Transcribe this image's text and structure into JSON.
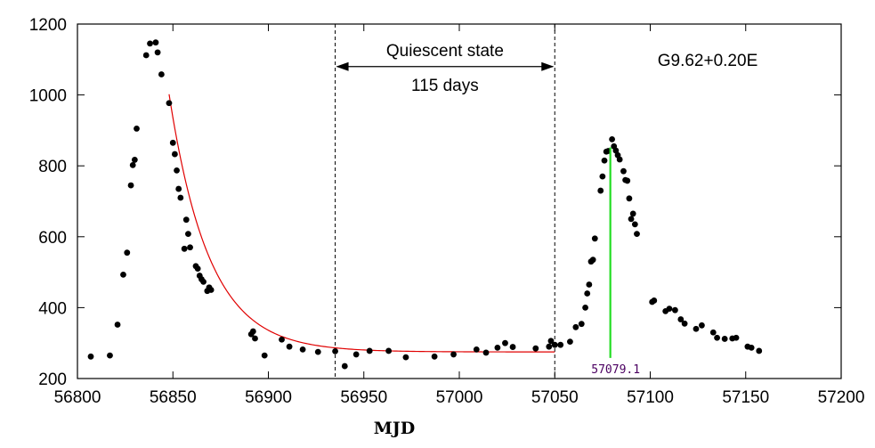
{
  "chart_data": {
    "type": "scatter",
    "title": "",
    "xlabel": "MJD",
    "ylabel": "",
    "xlim": [
      56800,
      57200
    ],
    "ylim": [
      200,
      1200
    ],
    "x_ticks": [
      56800,
      56850,
      56900,
      56950,
      57000,
      57050,
      57100,
      57150,
      57200
    ],
    "y_ticks": [
      200,
      400,
      600,
      800,
      1000,
      1200
    ],
    "grid": false,
    "colors": {
      "points": "#000000",
      "fit": "#e00000",
      "marker_line": "#22dd22",
      "vline": "#000000"
    },
    "source_label": "G9.62+0.20E",
    "quiescent": {
      "label": "Quiescent state",
      "duration_label": "115 days",
      "start": 56935,
      "end": 57050,
      "arrow_y": 1080
    },
    "peak_marker": {
      "x": 57079.1,
      "y_top": 852,
      "y_bottom": 258,
      "label": "57079.1"
    },
    "fit_curve": {
      "description": "",
      "x_start": 56848,
      "x_end": 57050,
      "baseline": 275,
      "amplitude": 727,
      "tau": 21
    },
    "points": [
      [
        56807,
        262
      ],
      [
        56817,
        265
      ],
      [
        56821,
        352
      ],
      [
        56824,
        493
      ],
      [
        56826,
        555
      ],
      [
        56828,
        745
      ],
      [
        56829,
        802
      ],
      [
        56830,
        817
      ],
      [
        56831,
        905
      ],
      [
        56836,
        1112
      ],
      [
        56838,
        1145
      ],
      [
        56841,
        1148
      ],
      [
        56842,
        1120
      ],
      [
        56844,
        1058
      ],
      [
        56848,
        977
      ],
      [
        56850,
        865
      ],
      [
        56851,
        833
      ],
      [
        56852,
        787
      ],
      [
        56853,
        735
      ],
      [
        56854,
        710
      ],
      [
        56856,
        566
      ],
      [
        56857,
        648
      ],
      [
        56858,
        608
      ],
      [
        56859,
        570
      ],
      [
        56862,
        517
      ],
      [
        56863,
        510
      ],
      [
        56864,
        490
      ],
      [
        56865,
        480
      ],
      [
        56866,
        473
      ],
      [
        56868,
        447
      ],
      [
        56869,
        457
      ],
      [
        56870,
        450
      ],
      [
        56891,
        325
      ],
      [
        56892,
        333
      ],
      [
        56893,
        313
      ],
      [
        56898,
        265
      ],
      [
        56907,
        310
      ],
      [
        56911,
        290
      ],
      [
        56918,
        282
      ],
      [
        56926,
        275
      ],
      [
        56935,
        277
      ],
      [
        56940,
        235
      ],
      [
        56946,
        268
      ],
      [
        56953,
        278
      ],
      [
        56963,
        278
      ],
      [
        56972,
        260
      ],
      [
        56987,
        262
      ],
      [
        56997,
        268
      ],
      [
        57009,
        282
      ],
      [
        57014,
        273
      ],
      [
        57020,
        287
      ],
      [
        57024,
        300
      ],
      [
        57028,
        289
      ],
      [
        57040,
        285
      ],
      [
        57047,
        290
      ],
      [
        57048,
        306
      ],
      [
        57050,
        295
      ],
      [
        57053,
        295
      ],
      [
        57058,
        304
      ],
      [
        57061,
        345
      ],
      [
        57064,
        354
      ],
      [
        57066,
        400
      ],
      [
        57067,
        440
      ],
      [
        57068,
        465
      ],
      [
        57069,
        530
      ],
      [
        57070,
        535
      ],
      [
        57071,
        595
      ],
      [
        57074,
        730
      ],
      [
        57075,
        770
      ],
      [
        57076,
        815
      ],
      [
        57077,
        840
      ],
      [
        57078,
        842
      ],
      [
        57080,
        875
      ],
      [
        57081,
        855
      ],
      [
        57082,
        843
      ],
      [
        57083,
        830
      ],
      [
        57084,
        818
      ],
      [
        57086,
        785
      ],
      [
        57087,
        760
      ],
      [
        57088,
        758
      ],
      [
        57089,
        708
      ],
      [
        57090,
        650
      ],
      [
        57091,
        665
      ],
      [
        57092,
        635
      ],
      [
        57093,
        608
      ],
      [
        57101,
        416
      ],
      [
        57102,
        420
      ],
      [
        57108,
        390
      ],
      [
        57110,
        397
      ],
      [
        57113,
        393
      ],
      [
        57116,
        367
      ],
      [
        57118,
        355
      ],
      [
        57124,
        340
      ],
      [
        57127,
        350
      ],
      [
        57133,
        330
      ],
      [
        57135,
        315
      ],
      [
        57139,
        312
      ],
      [
        57143,
        313
      ],
      [
        57145,
        315
      ],
      [
        57151,
        290
      ],
      [
        57153,
        287
      ],
      [
        57157,
        278
      ]
    ]
  }
}
